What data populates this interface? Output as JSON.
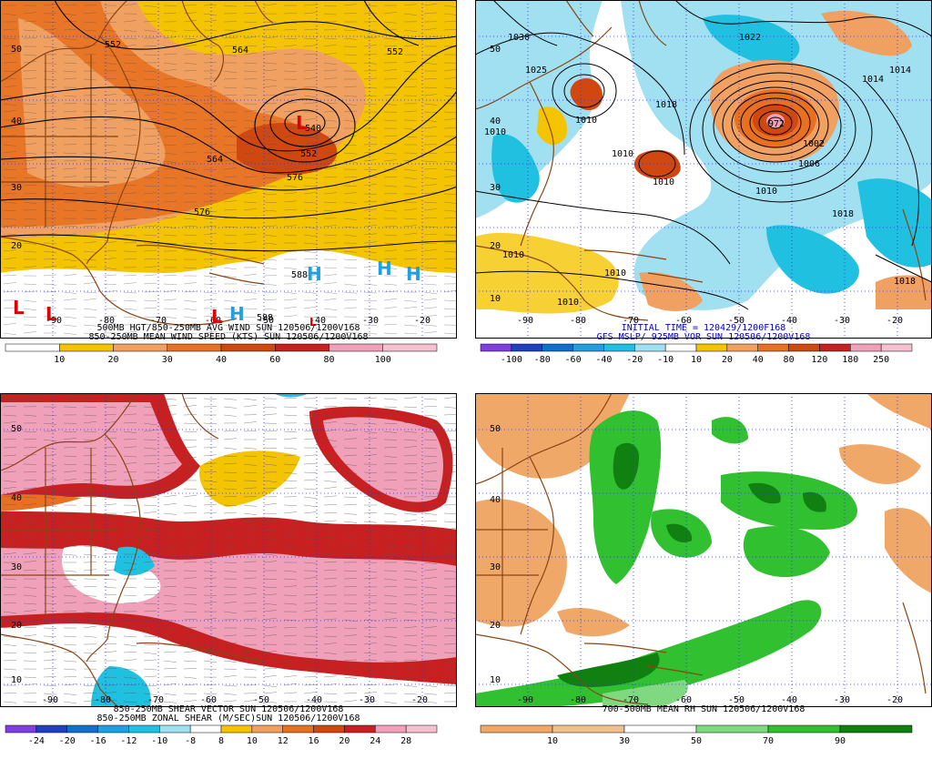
{
  "colors": {
    "yellow": "#f5c400",
    "lorange": "#f0a060",
    "orange": "#e87020",
    "dorange": "#d04810",
    "red": "#c82020",
    "pink": "#f0a0b8",
    "lpink": "#f6c0d0",
    "cyan": "#20c0e0",
    "lcyan": "#a0e0f0",
    "blue": "#1070d0",
    "green": "#30c030",
    "dgreen": "#108010",
    "lgreen": "#80d880",
    "tan": "#f0a868",
    "border": "#8b4513",
    "gridblue": "#3030d0",
    "contour": "#000000",
    "captionBlue": "#0000c0",
    "L": "#e00000",
    "H": "#20a0e0"
  },
  "panels": [
    {
      "id": "p1",
      "caption1": "500MB HGT/850-250MB AVG WIND SUN 120506/1200V168",
      "caption2": "850-250MB MEAN WIND SPEED (KTS) SUN 120506/1200V168",
      "colorbar": [
        "10",
        "20",
        "30",
        "40",
        "60",
        "80",
        "100"
      ],
      "lat_labels": [
        "50",
        "40",
        "30",
        "20"
      ],
      "lon_labels": [
        "-90",
        "-80",
        "-70",
        "-60",
        "-50",
        "-40",
        "-30",
        "-20"
      ],
      "contour_labels": [
        "552",
        "564",
        "552",
        "564",
        "576",
        "576",
        "540",
        "552",
        "588",
        "588"
      ],
      "markers": [
        {
          "t": "L",
          "c": "L"
        },
        {
          "t": "L",
          "c": "L"
        },
        {
          "t": "L",
          "c": "L"
        },
        {
          "t": "L",
          "c": "L"
        },
        {
          "t": "H",
          "c": "H"
        },
        {
          "t": "H",
          "c": "H"
        },
        {
          "t": "H",
          "c": "H"
        },
        {
          "t": "H",
          "c": "H"
        },
        {
          "t": "L",
          "c": "L"
        }
      ]
    },
    {
      "id": "p2",
      "caption1": "INITIAL TIME = 120429/1200F168",
      "caption2": "GFS MSLP/ 925MB VOR SUN 120506/1200V168",
      "colorbar": [
        "-100",
        "-80",
        "-60",
        "-40",
        "-20",
        "-10",
        "10",
        "20",
        "40",
        "80",
        "120",
        "180",
        "250"
      ],
      "lat_labels": [
        "50",
        "40",
        "30",
        "20",
        "10"
      ],
      "lon_labels": [
        "-90",
        "-80",
        "-70",
        "-60",
        "-50",
        "-40",
        "-30",
        "-20"
      ],
      "contour_labels": [
        "1030",
        "1025",
        "1010",
        "1018",
        "1022",
        "1014",
        "1010",
        "1010",
        "1006",
        "1002",
        "1010",
        "1018",
        "1010",
        "1010",
        "1010",
        "1018",
        "1014",
        "1010",
        "972"
      ]
    },
    {
      "id": "p3",
      "caption1": "850-250MB SHEAR VECTOR SUN 120506/1200V168",
      "caption2": "850-250MB ZONAL SHEAR (M/SEC)SUN 120506/1200V168",
      "colorbar": [
        "-24",
        "-20",
        "-16",
        "-12",
        "-10",
        "-8",
        "8",
        "10",
        "12",
        "16",
        "20",
        "24",
        "28"
      ],
      "lat_labels": [
        "50",
        "40",
        "30",
        "20",
        "10"
      ],
      "lon_labels": [
        "-90",
        "-80",
        "-70",
        "-60",
        "-50",
        "-40",
        "-30",
        "-20"
      ]
    },
    {
      "id": "p4",
      "caption1": "700-500MB MEAN RH SUN 120506/1200V168",
      "caption2": "",
      "colorbar": [
        "10",
        "30",
        "50",
        "70",
        "90"
      ],
      "lat_labels": [
        "50",
        "40",
        "30",
        "20",
        "10"
      ],
      "lon_labels": [
        "-90",
        "-80",
        "-70",
        "-60",
        "-50",
        "-40",
        "-30",
        "-20"
      ]
    }
  ]
}
